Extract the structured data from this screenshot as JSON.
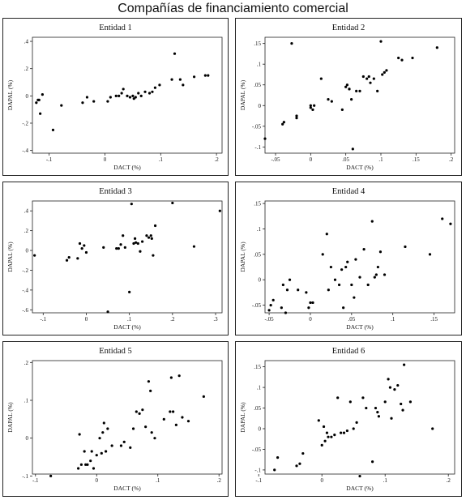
{
  "figure_title": "Compañías de financiamiento comercial",
  "chart_data": [
    {
      "type": "scatter",
      "title": "Entidad 1",
      "xlabel": "DACT (%)",
      "ylabel": "DAPAL (%)",
      "xlim": [
        -0.13,
        0.21
      ],
      "ylim": [
        -0.42,
        0.43
      ],
      "xticks": [
        {
          "v": -0.1,
          "label": "-.1"
        },
        {
          "v": 0,
          "label": "0"
        },
        {
          "v": 0.1,
          "label": ".1"
        },
        {
          "v": 0.2,
          "label": ".2"
        }
      ],
      "yticks": [
        {
          "v": -0.4,
          "label": "-.4"
        },
        {
          "v": -0.2,
          "label": "-.2"
        },
        {
          "v": 0,
          "label": "0"
        },
        {
          "v": 0.2,
          "label": ".2"
        },
        {
          "v": 0.4,
          "label": ".4"
        }
      ],
      "points": [
        [
          -0.123,
          -0.05
        ],
        [
          -0.12,
          -0.03
        ],
        [
          -0.118,
          -0.03
        ],
        [
          -0.116,
          -0.13
        ],
        [
          -0.112,
          0.01
        ],
        [
          -0.093,
          -0.25
        ],
        [
          -0.078,
          -0.07
        ],
        [
          -0.04,
          -0.05
        ],
        [
          -0.032,
          -0.01
        ],
        [
          -0.02,
          -0.04
        ],
        [
          0.005,
          -0.04
        ],
        [
          0.01,
          -0.01
        ],
        [
          0.02,
          0.0
        ],
        [
          0.025,
          0.0
        ],
        [
          0.03,
          0.02
        ],
        [
          0.033,
          0.05
        ],
        [
          0.04,
          0.0
        ],
        [
          0.045,
          -0.01
        ],
        [
          0.05,
          0.0
        ],
        [
          0.052,
          -0.02
        ],
        [
          0.055,
          -0.01
        ],
        [
          0.06,
          0.02
        ],
        [
          0.065,
          0.0
        ],
        [
          0.072,
          0.03
        ],
        [
          0.08,
          0.02
        ],
        [
          0.085,
          0.03
        ],
        [
          0.09,
          0.06
        ],
        [
          0.098,
          0.08
        ],
        [
          0.12,
          0.12
        ],
        [
          0.125,
          0.31
        ],
        [
          0.135,
          0.12
        ],
        [
          0.14,
          0.08
        ],
        [
          0.16,
          0.14
        ],
        [
          0.18,
          0.15
        ],
        [
          0.185,
          0.15
        ]
      ]
    },
    {
      "type": "scatter",
      "title": "Entidad 2",
      "xlabel": "DACT (%)",
      "ylabel": "DAPAL (%)",
      "xlim": [
        -0.065,
        0.205
      ],
      "ylim": [
        -0.115,
        0.165
      ],
      "xticks": [
        {
          "v": -0.05,
          "label": "-.05"
        },
        {
          "v": 0,
          "label": "0"
        },
        {
          "v": 0.05,
          "label": ".05"
        },
        {
          "v": 0.1,
          "label": ".1"
        },
        {
          "v": 0.15,
          "label": ".15"
        },
        {
          "v": 0.2,
          "label": ".2"
        }
      ],
      "yticks": [
        {
          "v": -0.1,
          "label": "-.1"
        },
        {
          "v": -0.05,
          "label": "-.05"
        },
        {
          "v": 0,
          "label": "0"
        },
        {
          "v": 0.05,
          "label": ".05"
        },
        {
          "v": 0.1,
          "label": ".1"
        },
        {
          "v": 0.15,
          "label": ".15"
        }
      ],
      "points": [
        [
          -0.065,
          -0.08
        ],
        [
          -0.04,
          -0.045
        ],
        [
          -0.038,
          -0.04
        ],
        [
          -0.027,
          0.15
        ],
        [
          -0.02,
          -0.03
        ],
        [
          -0.02,
          -0.025
        ],
        [
          0.0,
          0.0
        ],
        [
          0.0,
          -0.005
        ],
        [
          0.003,
          -0.01
        ],
        [
          0.005,
          0.0
        ],
        [
          0.015,
          0.065
        ],
        [
          0.025,
          0.015
        ],
        [
          0.03,
          0.01
        ],
        [
          0.045,
          -0.01
        ],
        [
          0.05,
          0.045
        ],
        [
          0.052,
          0.05
        ],
        [
          0.055,
          0.04
        ],
        [
          0.055,
          0.04
        ],
        [
          0.058,
          0.015
        ],
        [
          0.06,
          -0.105
        ],
        [
          0.065,
          0.035
        ],
        [
          0.07,
          0.035
        ],
        [
          0.075,
          0.07
        ],
        [
          0.08,
          0.065
        ],
        [
          0.083,
          0.07
        ],
        [
          0.085,
          0.055
        ],
        [
          0.09,
          0.065
        ],
        [
          0.095,
          0.035
        ],
        [
          0.1,
          0.155
        ],
        [
          0.102,
          0.075
        ],
        [
          0.105,
          0.08
        ],
        [
          0.108,
          0.085
        ],
        [
          0.125,
          0.115
        ],
        [
          0.13,
          0.11
        ],
        [
          0.145,
          0.115
        ],
        [
          0.18,
          0.14
        ]
      ]
    },
    {
      "type": "scatter",
      "title": "Entidad 3",
      "xlabel": "DACT (%)",
      "ylabel": "DAPAL (%)",
      "xlim": [
        -0.125,
        0.315
      ],
      "ylim": [
        -0.63,
        0.5
      ],
      "xticks": [
        {
          "v": -0.1,
          "label": "-.1"
        },
        {
          "v": 0,
          "label": "0"
        },
        {
          "v": 0.1,
          "label": ".1"
        },
        {
          "v": 0.2,
          "label": ".2"
        },
        {
          "v": 0.3,
          "label": ".3"
        }
      ],
      "yticks": [
        {
          "v": -0.6,
          "label": "-.6"
        },
        {
          "v": -0.4,
          "label": "-.4"
        },
        {
          "v": -0.2,
          "label": "-.2"
        },
        {
          "v": 0,
          "label": "0"
        },
        {
          "v": 0.2,
          "label": ".2"
        },
        {
          "v": 0.4,
          "label": ".4"
        }
      ],
      "points": [
        [
          -0.12,
          -0.05
        ],
        [
          -0.045,
          -0.1
        ],
        [
          -0.04,
          -0.07
        ],
        [
          -0.02,
          -0.08
        ],
        [
          -0.015,
          0.07
        ],
        [
          -0.01,
          0.02
        ],
        [
          -0.005,
          0.05
        ],
        [
          0.0,
          -0.02
        ],
        [
          0.04,
          0.03
        ],
        [
          0.05,
          -0.62
        ],
        [
          0.07,
          0.02
        ],
        [
          0.075,
          0.02
        ],
        [
          0.08,
          0.06
        ],
        [
          0.085,
          0.15
        ],
        [
          0.09,
          0.03
        ],
        [
          0.1,
          -0.42
        ],
        [
          0.105,
          0.47
        ],
        [
          0.11,
          0.07
        ],
        [
          0.113,
          0.12
        ],
        [
          0.115,
          0.08
        ],
        [
          0.12,
          0.07
        ],
        [
          0.125,
          -0.01
        ],
        [
          0.13,
          0.09
        ],
        [
          0.14,
          0.15
        ],
        [
          0.145,
          0.13
        ],
        [
          0.15,
          0.15
        ],
        [
          0.152,
          0.12
        ],
        [
          0.155,
          -0.05
        ],
        [
          0.16,
          0.25
        ],
        [
          0.2,
          0.48
        ],
        [
          0.25,
          0.04
        ],
        [
          0.31,
          0.4
        ]
      ]
    },
    {
      "type": "scatter",
      "title": "Entidad 4",
      "xlabel": "DACT (%)",
      "ylabel": "DAPAL (%)",
      "xlim": [
        -0.055,
        0.175
      ],
      "ylim": [
        -0.065,
        0.155
      ],
      "xticks": [
        {
          "v": -0.05,
          "label": "-.05"
        },
        {
          "v": 0,
          "label": "0"
        },
        {
          "v": 0.05,
          "label": ".05"
        },
        {
          "v": 0.1,
          "label": ".1"
        },
        {
          "v": 0.15,
          "label": ".15"
        }
      ],
      "yticks": [
        {
          "v": -0.05,
          "label": "-.05"
        },
        {
          "v": 0,
          "label": "0"
        },
        {
          "v": 0.05,
          "label": ".05"
        },
        {
          "v": 0.1,
          "label": ".1"
        },
        {
          "v": 0.15,
          "label": ".15"
        }
      ],
      "points": [
        [
          -0.05,
          -0.06
        ],
        [
          -0.048,
          -0.05
        ],
        [
          -0.045,
          -0.04
        ],
        [
          -0.035,
          -0.055
        ],
        [
          -0.033,
          -0.01
        ],
        [
          -0.03,
          -0.065
        ],
        [
          -0.028,
          -0.02
        ],
        [
          -0.025,
          0.0
        ],
        [
          -0.015,
          -0.02
        ],
        [
          -0.005,
          -0.025
        ],
        [
          -0.002,
          -0.055
        ],
        [
          0.0,
          -0.045
        ],
        [
          0.003,
          -0.045
        ],
        [
          0.015,
          0.05
        ],
        [
          0.02,
          0.09
        ],
        [
          0.022,
          -0.02
        ],
        [
          0.025,
          0.025
        ],
        [
          0.03,
          0.0
        ],
        [
          0.035,
          -0.01
        ],
        [
          0.038,
          0.02
        ],
        [
          0.04,
          -0.055
        ],
        [
          0.043,
          0.025
        ],
        [
          0.045,
          0.035
        ],
        [
          0.05,
          -0.01
        ],
        [
          0.053,
          -0.035
        ],
        [
          0.055,
          0.04
        ],
        [
          0.06,
          0.005
        ],
        [
          0.065,
          0.06
        ],
        [
          0.07,
          -0.01
        ],
        [
          0.075,
          0.115
        ],
        [
          0.078,
          0.005
        ],
        [
          0.08,
          0.01
        ],
        [
          0.082,
          0.025
        ],
        [
          0.085,
          0.055
        ],
        [
          0.09,
          0.01
        ],
        [
          0.115,
          0.065
        ],
        [
          0.145,
          0.05
        ],
        [
          0.16,
          0.12
        ],
        [
          0.17,
          0.11
        ]
      ]
    },
    {
      "type": "scatter",
      "title": "Entidad 5",
      "xlabel": "DACT (%)",
      "ylabel": "DAPAL (%)",
      "xlim": [
        -0.105,
        0.205
      ],
      "ylim": [
        -0.095,
        0.205
      ],
      "xticks": [
        {
          "v": -0.1,
          "label": "-.1"
        },
        {
          "v": 0,
          "label": "0"
        },
        {
          "v": 0.1,
          "label": ".1"
        },
        {
          "v": 0.2,
          "label": ".2"
        }
      ],
      "yticks": [
        {
          "v": -0.1,
          "label": "-.1"
        },
        {
          "v": 0,
          "label": "0"
        },
        {
          "v": 0.1,
          "label": ".1"
        },
        {
          "v": 0.2,
          "label": ".2"
        }
      ],
      "points": [
        [
          -0.075,
          -0.1
        ],
        [
          -0.03,
          -0.08
        ],
        [
          -0.028,
          0.01
        ],
        [
          -0.025,
          -0.07
        ],
        [
          -0.02,
          -0.035
        ],
        [
          -0.018,
          -0.07
        ],
        [
          -0.015,
          -0.07
        ],
        [
          -0.01,
          -0.06
        ],
        [
          -0.008,
          -0.035
        ],
        [
          -0.005,
          -0.08
        ],
        [
          0.0,
          -0.045
        ],
        [
          0.005,
          0.0
        ],
        [
          0.008,
          -0.04
        ],
        [
          0.01,
          0.015
        ],
        [
          0.012,
          0.04
        ],
        [
          0.015,
          -0.035
        ],
        [
          0.018,
          0.025
        ],
        [
          0.025,
          -0.02
        ],
        [
          0.04,
          -0.02
        ],
        [
          0.045,
          -0.01
        ],
        [
          0.055,
          -0.025
        ],
        [
          0.06,
          0.025
        ],
        [
          0.065,
          0.07
        ],
        [
          0.07,
          0.065
        ],
        [
          0.075,
          0.075
        ],
        [
          0.08,
          0.03
        ],
        [
          0.085,
          0.15
        ],
        [
          0.088,
          0.125
        ],
        [
          0.09,
          0.015
        ],
        [
          0.095,
          0.0
        ],
        [
          0.11,
          0.05
        ],
        [
          0.12,
          0.07
        ],
        [
          0.122,
          0.16
        ],
        [
          0.125,
          0.07
        ],
        [
          0.13,
          0.035
        ],
        [
          0.135,
          0.165
        ],
        [
          0.14,
          0.055
        ],
        [
          0.15,
          0.045
        ],
        [
          0.175,
          0.11
        ]
      ]
    },
    {
      "type": "scatter",
      "title": "Entidad 6",
      "xlabel": "DACT (%)",
      "ylabel": "DAPAL (%)",
      "xlim": [
        -0.09,
        0.21
      ],
      "ylim": [
        -0.11,
        0.165
      ],
      "xticks": [
        {
          "v": -0.1,
          "label": "-.1"
        },
        {
          "v": 0,
          "label": "0"
        },
        {
          "v": 0.1,
          "label": ".1"
        },
        {
          "v": 0.2,
          "label": ".2"
        }
      ],
      "yticks": [
        {
          "v": -0.1,
          "label": "-.1"
        },
        {
          "v": -0.05,
          "label": "-.05"
        },
        {
          "v": 0,
          "label": "0"
        },
        {
          "v": 0.05,
          "label": ".05"
        },
        {
          "v": 0.1,
          "label": ".1"
        },
        {
          "v": 0.15,
          "label": ".15"
        }
      ],
      "points": [
        [
          -0.075,
          -0.1
        ],
        [
          -0.07,
          -0.07
        ],
        [
          -0.04,
          -0.09
        ],
        [
          -0.035,
          -0.085
        ],
        [
          -0.03,
          -0.06
        ],
        [
          -0.005,
          0.02
        ],
        [
          0.0,
          -0.04
        ],
        [
          0.003,
          0.005
        ],
        [
          0.005,
          -0.03
        ],
        [
          0.008,
          -0.01
        ],
        [
          0.01,
          -0.02
        ],
        [
          0.015,
          -0.02
        ],
        [
          0.02,
          -0.015
        ],
        [
          0.025,
          0.075
        ],
        [
          0.03,
          -0.01
        ],
        [
          0.035,
          -0.01
        ],
        [
          0.04,
          -0.005
        ],
        [
          0.045,
          0.065
        ],
        [
          0.05,
          0.0
        ],
        [
          0.055,
          0.015
        ],
        [
          0.06,
          -0.115
        ],
        [
          0.065,
          0.075
        ],
        [
          0.07,
          0.05
        ],
        [
          0.08,
          -0.08
        ],
        [
          0.085,
          0.05
        ],
        [
          0.088,
          0.04
        ],
        [
          0.09,
          0.03
        ],
        [
          0.1,
          0.065
        ],
        [
          0.105,
          0.12
        ],
        [
          0.108,
          0.1
        ],
        [
          0.11,
          0.025
        ],
        [
          0.115,
          0.095
        ],
        [
          0.12,
          0.105
        ],
        [
          0.125,
          0.06
        ],
        [
          0.128,
          0.045
        ],
        [
          0.13,
          0.155
        ],
        [
          0.14,
          0.065
        ],
        [
          0.175,
          0.0
        ]
      ]
    }
  ]
}
